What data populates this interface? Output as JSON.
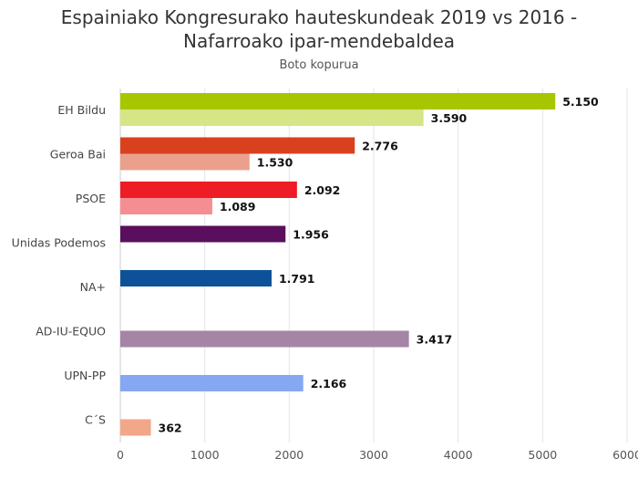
{
  "chart_data": {
    "type": "bar",
    "orientation": "horizontal",
    "title": "Espainiako Kongresurako hauteskundeak 2019 vs 2016 - Nafarroako ipar-mendebaldea",
    "title_lines": [
      "Espainiako Kongresurako hauteskundeak 2019 vs 2016 -",
      "Nafarroako ipar-mendebaldea"
    ],
    "subtitle": "Boto kopurua",
    "xlim": [
      0,
      6000
    ],
    "xticks": [
      0,
      1000,
      2000,
      3000,
      4000,
      5000,
      6000
    ],
    "grid": true,
    "categories": [
      {
        "label": "EH Bildu",
        "bars": [
          {
            "value": 5150,
            "label": "5.150",
            "color": "#a8c600"
          },
          {
            "value": 3590,
            "label": "3.590",
            "color": "#d6e585"
          }
        ]
      },
      {
        "label": "Geroa Bai",
        "bars": [
          {
            "value": 2776,
            "label": "2.776",
            "color": "#d9411e"
          },
          {
            "value": 1530,
            "label": "1.530",
            "color": "#eaa08d"
          }
        ]
      },
      {
        "label": "PSOE",
        "bars": [
          {
            "value": 2092,
            "label": "2.092",
            "color": "#ee1c25"
          },
          {
            "value": 1089,
            "label": "1.089",
            "color": "#f58e92"
          }
        ]
      },
      {
        "label": "Unidas Podemos",
        "bars": [
          {
            "value": 1956,
            "label": "1.956",
            "color": "#5a0f5e"
          }
        ]
      },
      {
        "label": "NA+",
        "bars": [
          {
            "value": 1791,
            "label": "1.791",
            "color": "#0d5299"
          }
        ]
      },
      {
        "label": "AD-IU-EQUO",
        "bars": [
          {
            "value": 3417,
            "label": "3.417",
            "color": "#a485a6",
            "slot": 1
          }
        ]
      },
      {
        "label": "UPN-PP",
        "bars": [
          {
            "value": 2166,
            "label": "2.166",
            "color": "#86a8f2",
            "slot": 1
          }
        ]
      },
      {
        "label": "C´S",
        "bars": [
          {
            "value": 362,
            "label": "362",
            "color": "#f2a788",
            "slot": 1
          }
        ]
      }
    ]
  }
}
